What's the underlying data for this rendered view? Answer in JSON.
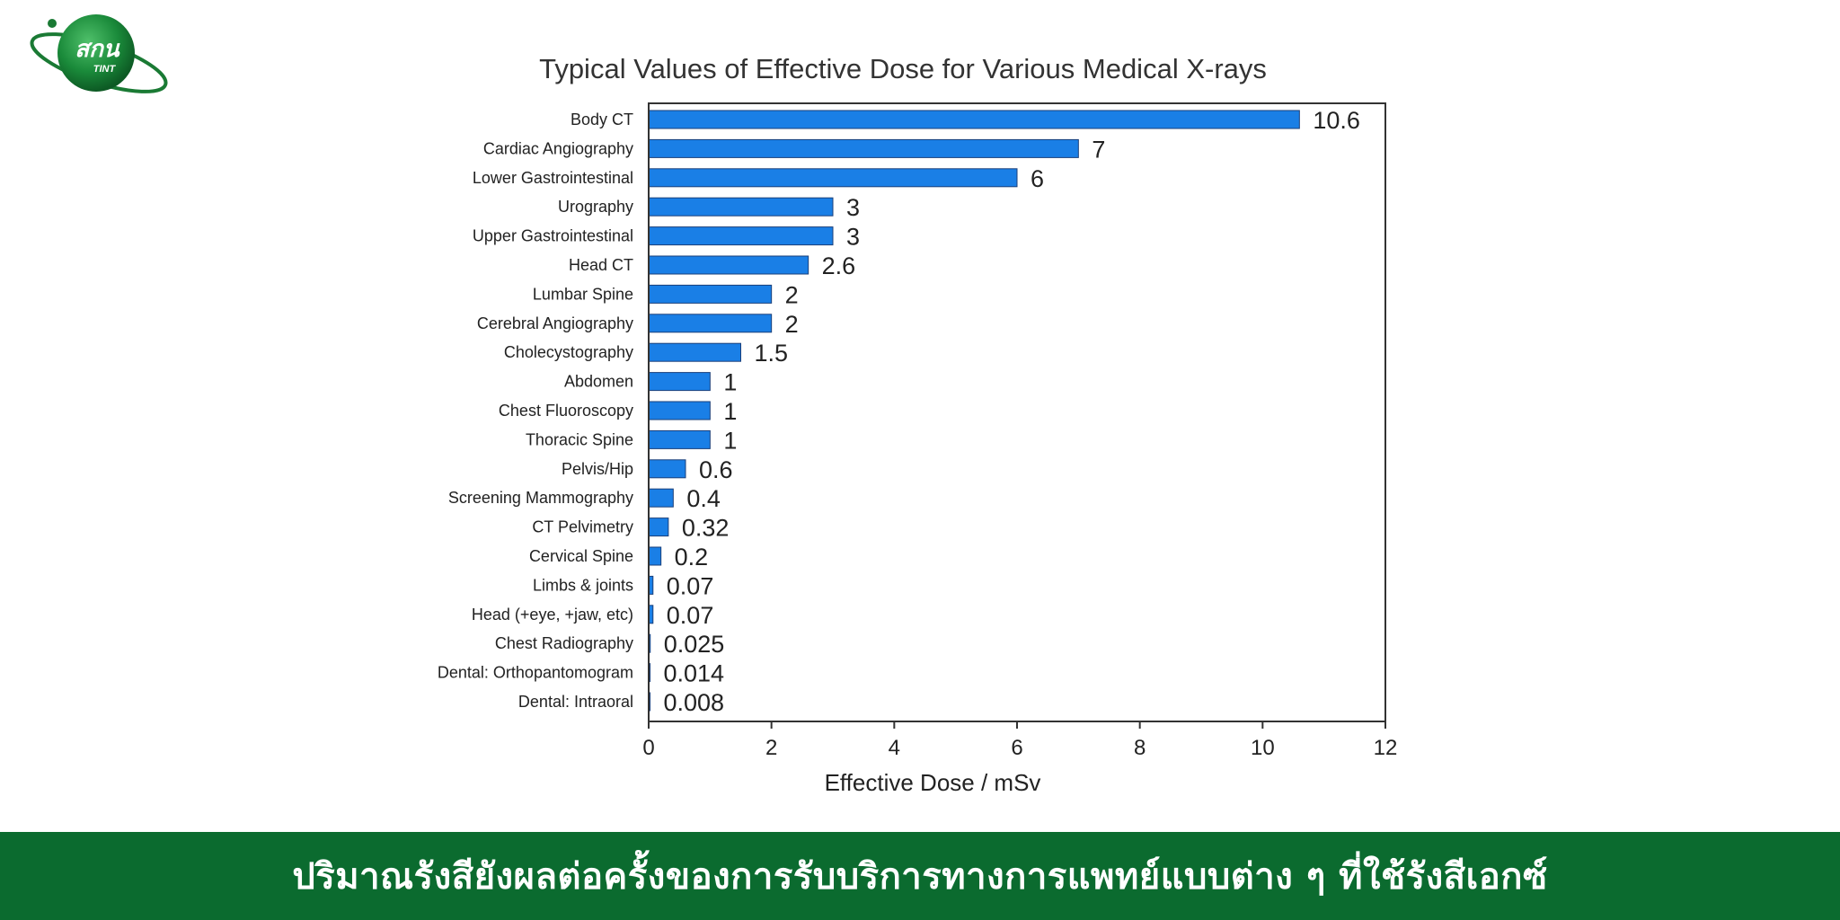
{
  "logo": {
    "text_main": "สกน",
    "text_sub": "TINT"
  },
  "footer": {
    "caption": "ปริมาณรังสียังผลต่อครั้งของการรับบริการทางการแพทย์แบบต่าง ๆ ที่ใช้รังสีเอกซ์"
  },
  "colors": {
    "bar": "#1a7fe6",
    "footer_bg": "#0b6b2f",
    "logo_green": "#1a8a3a"
  },
  "chart_data": {
    "type": "bar",
    "orientation": "horizontal",
    "title": "Typical Values of Effective Dose for Various Medical X-rays",
    "xlabel": "Effective Dose / mSv",
    "ylabel": "",
    "xlim": [
      0,
      12
    ],
    "xticks": [
      0,
      2,
      4,
      6,
      8,
      10,
      12
    ],
    "grid": false,
    "categories": [
      "Body CT",
      "Cardiac Angiography",
      "Lower Gastrointestinal",
      "Urography",
      "Upper Gastrointestinal",
      "Head CT",
      "Lumbar Spine",
      "Cerebral Angiography",
      "Cholecystography",
      "Abdomen",
      "Chest Fluoroscopy",
      "Thoracic Spine",
      "Pelvis/Hip",
      "Screening Mammography",
      "CT Pelvimetry",
      "Cervical Spine",
      "Limbs & joints",
      "Head (+eye, +jaw, etc)",
      "Chest Radiography",
      "Dental: Orthopantomogram",
      "Dental: Intraoral"
    ],
    "values": [
      10.6,
      7,
      6,
      3,
      3,
      2.6,
      2,
      2,
      1.5,
      1,
      1,
      1,
      0.6,
      0.4,
      0.32,
      0.2,
      0.07,
      0.07,
      0.025,
      0.014,
      0.008
    ],
    "value_labels": [
      "10.6",
      "7",
      "6",
      "3",
      "3",
      "2.6",
      "2",
      "2",
      "1.5",
      "1",
      "1",
      "1",
      "0.6",
      "0.4",
      "0.32",
      "0.2",
      "0.07",
      "0.07",
      "0.025",
      "0.014",
      "0.008"
    ]
  }
}
